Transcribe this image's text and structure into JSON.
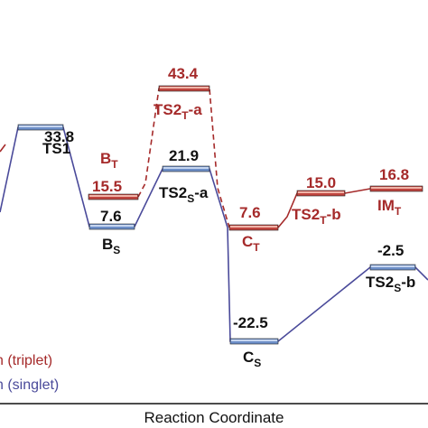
{
  "chart_data": {
    "type": "energy-profile",
    "xlabel": "Reaction Coordinate",
    "legend": {
      "triplet": "n (triplet)",
      "singlet": "n (singlet)"
    },
    "colors": {
      "triplet": "#a52a2a",
      "singlet": "#4a4a9a",
      "text_dark": "#111111"
    },
    "states": {
      "left_edge": {
        "value": "",
        "name": ""
      },
      "ts1": {
        "value": "33.8",
        "name": "TS1"
      },
      "bs": {
        "value": "7.6",
        "name": "B",
        "sub": "S"
      },
      "bt": {
        "value": "15.5",
        "name": "B",
        "sub": "T"
      },
      "ts2ta": {
        "value": "43.4",
        "name": "TS2",
        "sub": "T",
        "suffix": "-a"
      },
      "ts2sa": {
        "value": "21.9",
        "name": "TS2",
        "sub": "S",
        "suffix": "-a"
      },
      "ct": {
        "value": "7.6",
        "name": "C",
        "sub": "T"
      },
      "cs": {
        "value": "-22.5",
        "name": "C",
        "sub": "S"
      },
      "ts2tb": {
        "value": "15.0",
        "name": "TS2",
        "sub": "T",
        "suffix": "-b"
      },
      "imt": {
        "value": "16.8",
        "name": "IM",
        "sub": "T"
      },
      "ts2sb": {
        "value": "-2.5",
        "name": "TS2",
        "sub": "S",
        "suffix": "-b"
      }
    }
  }
}
